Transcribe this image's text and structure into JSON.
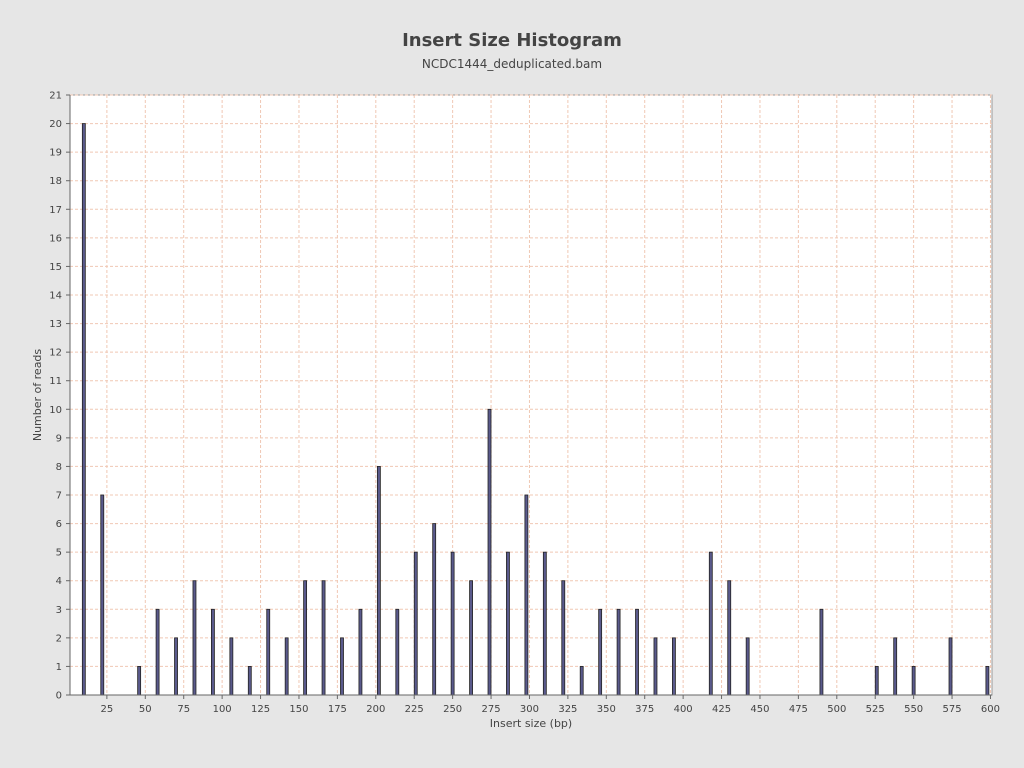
{
  "chart_data": {
    "type": "bar",
    "title": "Insert Size Histogram",
    "subtitle": "NCDC1444_deduplicated.bam",
    "xlabel": "Insert size (bp)",
    "ylabel": "Number of reads",
    "xlim": [
      1,
      601
    ],
    "ylim": [
      0,
      21
    ],
    "x_ticks": [
      25,
      50,
      75,
      100,
      125,
      150,
      175,
      200,
      225,
      250,
      275,
      300,
      325,
      350,
      375,
      400,
      425,
      450,
      475,
      500,
      525,
      550,
      575,
      600
    ],
    "y_ticks": [
      0,
      1,
      2,
      3,
      4,
      5,
      6,
      7,
      8,
      9,
      10,
      11,
      12,
      13,
      14,
      15,
      16,
      17,
      18,
      19,
      20,
      21
    ],
    "grid": true,
    "points": [
      {
        "x": 10,
        "y": 20
      },
      {
        "x": 22,
        "y": 7
      },
      {
        "x": 46,
        "y": 1
      },
      {
        "x": 58,
        "y": 3
      },
      {
        "x": 70,
        "y": 2
      },
      {
        "x": 82,
        "y": 4
      },
      {
        "x": 94,
        "y": 3
      },
      {
        "x": 106,
        "y": 2
      },
      {
        "x": 118,
        "y": 1
      },
      {
        "x": 130,
        "y": 3
      },
      {
        "x": 142,
        "y": 2
      },
      {
        "x": 154,
        "y": 4
      },
      {
        "x": 166,
        "y": 4
      },
      {
        "x": 178,
        "y": 2
      },
      {
        "x": 190,
        "y": 3
      },
      {
        "x": 202,
        "y": 8
      },
      {
        "x": 214,
        "y": 3
      },
      {
        "x": 226,
        "y": 5
      },
      {
        "x": 238,
        "y": 6
      },
      {
        "x": 250,
        "y": 5
      },
      {
        "x": 262,
        "y": 4
      },
      {
        "x": 274,
        "y": 10
      },
      {
        "x": 286,
        "y": 5
      },
      {
        "x": 298,
        "y": 7
      },
      {
        "x": 310,
        "y": 5
      },
      {
        "x": 322,
        "y": 4
      },
      {
        "x": 334,
        "y": 1
      },
      {
        "x": 346,
        "y": 3
      },
      {
        "x": 358,
        "y": 3
      },
      {
        "x": 370,
        "y": 3
      },
      {
        "x": 382,
        "y": 2
      },
      {
        "x": 394,
        "y": 2
      },
      {
        "x": 418,
        "y": 5
      },
      {
        "x": 430,
        "y": 4
      },
      {
        "x": 442,
        "y": 2
      },
      {
        "x": 490,
        "y": 3
      },
      {
        "x": 526,
        "y": 1
      },
      {
        "x": 538,
        "y": 2
      },
      {
        "x": 550,
        "y": 1
      },
      {
        "x": 574,
        "y": 2
      },
      {
        "x": 598,
        "y": 1
      }
    ],
    "colors": {
      "bar_fill": "#5a5a8c",
      "bar_edge": "#222222",
      "grid": "#f0c8b4",
      "plot_bg": "#ffffff",
      "page_bg": "#e6e6e6"
    }
  }
}
